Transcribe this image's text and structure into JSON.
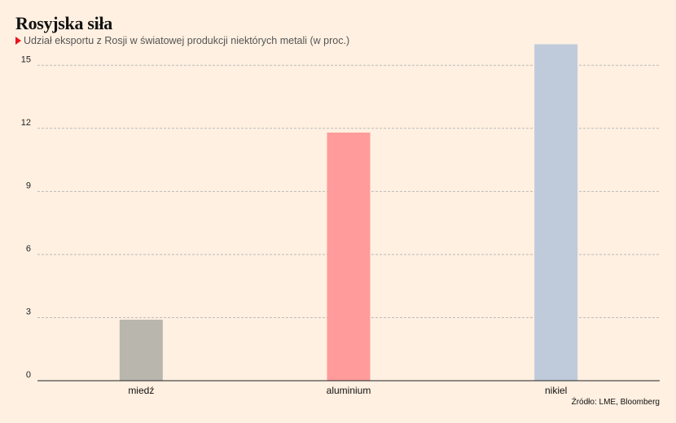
{
  "header": {
    "title": "Rosyjska siła",
    "subtitle": "Udział eksportu z Rosji w światowej produkcji niektórych metali (w proc.)"
  },
  "source": "Źródło: LME, Bloomberg",
  "colors": {
    "background": "#fff0e1",
    "marker": "#e8151b",
    "grid": "#bbbbbb"
  },
  "chart_data": {
    "type": "bar",
    "title": "Rosyjska siła",
    "subtitle": "Udział eksportu z Rosji w światowej produkcji niektórych metali (w proc.)",
    "xlabel": "",
    "ylabel": "",
    "categories": [
      "miedź",
      "aluminium",
      "nikiel"
    ],
    "values": [
      2.9,
      11.8,
      16.0
    ],
    "bar_colors": [
      "#b8b6ad",
      "#ff9b9b",
      "#bfcadb"
    ],
    "ylim": [
      0,
      16
    ],
    "yticks": [
      0,
      3,
      6,
      9,
      12,
      15
    ],
    "grid": true,
    "legend": "none"
  }
}
